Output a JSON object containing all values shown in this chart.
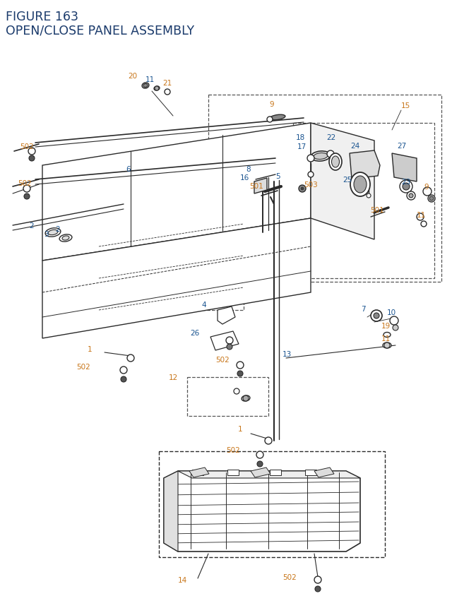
{
  "title_line1": "FIGURE 163",
  "title_line2": "OPEN/CLOSE PANEL ASSEMBLY",
  "title_color": "#1a3a6b",
  "title_fontsize": 12.5,
  "bg_color": "#ffffff",
  "lc_orange": "#c8761a",
  "lc_blue": "#1a5490",
  "lc_teal": "#1a7a6b",
  "fs": 7.5,
  "dc": "#2a2a2a",
  "dbc": "#555555",
  "lw_main": 1.0,
  "lw_thick": 1.5
}
